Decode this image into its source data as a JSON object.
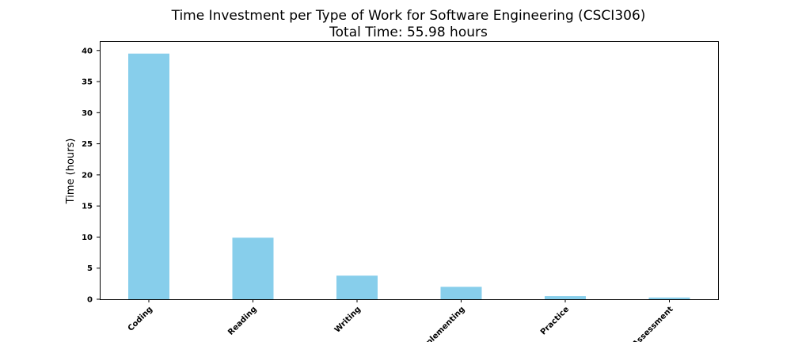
{
  "chart_data": {
    "type": "bar",
    "title": "Time Investment per Type of Work for Software Engineering (CSCI306)",
    "subtitle": "Total Time: 55.98 hours",
    "xlabel": "",
    "ylabel": "Time (hours)",
    "categories": [
      "Coding",
      "Reading",
      "Writing",
      "Implementing",
      "Practice",
      "Assessment"
    ],
    "values": [
      39.5,
      9.9,
      3.8,
      2.0,
      0.5,
      0.28
    ],
    "ylim": [
      0,
      41.5
    ],
    "yticks": [
      0,
      5,
      10,
      15,
      20,
      25,
      30,
      35,
      40
    ],
    "bar_color": "#87ceeb",
    "grid": false
  }
}
